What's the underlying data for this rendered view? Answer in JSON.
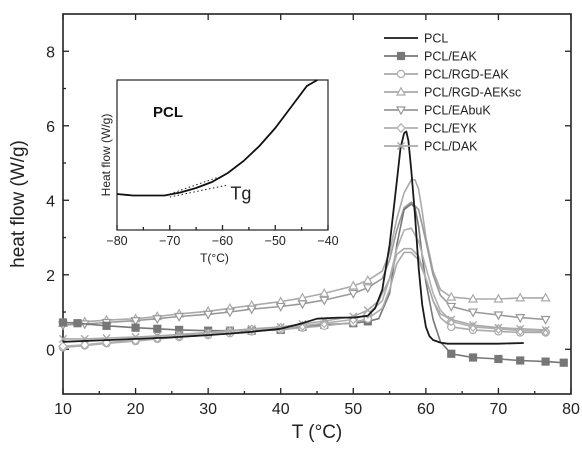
{
  "chart_data": [
    {
      "type": "line",
      "title": "",
      "xlabel": "T (°C)",
      "ylabel": "heat flow (W/g)",
      "xlim": [
        10,
        80
      ],
      "ylim": [
        -1.2,
        9
      ],
      "xticks": [
        10,
        20,
        30,
        40,
        50,
        60,
        70,
        80
      ],
      "yticks": [
        0,
        2,
        4,
        6,
        8
      ],
      "legend_position": "top-right",
      "grid": false,
      "series": [
        {
          "name": "PCL",
          "color": "#1a1a1a",
          "marker": "none",
          "x": [
            10,
            15,
            20,
            25,
            30,
            35,
            40,
            43,
            45,
            48,
            50,
            52,
            53,
            54,
            55,
            56,
            56.5,
            57,
            57.3,
            57.6,
            58,
            58.5,
            59,
            59.5,
            60,
            60.5,
            61,
            62,
            63,
            65,
            70,
            73.5
          ],
          "y": [
            0.2,
            0.24,
            0.28,
            0.32,
            0.38,
            0.45,
            0.55,
            0.7,
            0.82,
            0.85,
            0.85,
            0.9,
            1.1,
            1.6,
            2.8,
            4.5,
            5.4,
            5.8,
            5.85,
            5.6,
            4.8,
            3.6,
            2.2,
            1.2,
            0.6,
            0.35,
            0.25,
            0.18,
            0.15,
            0.15,
            0.15,
            0.17
          ]
        },
        {
          "name": "PCL/EAK",
          "color": "#777777",
          "marker": "square",
          "x": [
            10,
            12,
            16,
            20,
            23,
            26,
            30,
            33,
            36,
            40,
            43,
            46,
            50,
            52,
            53.5,
            55,
            56,
            57,
            58,
            58.5,
            59,
            59.5,
            60,
            61,
            62,
            63.5,
            66.5,
            70,
            73,
            76.5,
            79
          ],
          "y": [
            0.72,
            0.7,
            0.63,
            0.58,
            0.55,
            0.52,
            0.5,
            0.5,
            0.5,
            0.52,
            0.6,
            0.66,
            0.7,
            0.75,
            0.82,
            1.5,
            2.8,
            3.75,
            3.9,
            3.8,
            3.3,
            2.5,
            1.8,
            0.8,
            0.2,
            -0.12,
            -0.22,
            -0.26,
            -0.3,
            -0.33,
            -0.36
          ]
        },
        {
          "name": "PCL/RGD-EAK",
          "color": "#aaaaaa",
          "marker": "circle",
          "x": [
            10,
            13,
            16,
            20,
            23,
            26,
            30,
            33,
            36,
            40,
            43,
            46,
            50,
            52,
            54,
            55,
            56,
            57,
            58,
            59,
            60,
            61,
            62,
            63.5,
            66.5,
            70,
            73,
            76.5
          ],
          "y": [
            0.05,
            0.1,
            0.16,
            0.22,
            0.28,
            0.33,
            0.38,
            0.43,
            0.48,
            0.53,
            0.58,
            0.63,
            0.72,
            0.82,
            1.1,
            1.6,
            2.3,
            2.6,
            2.6,
            2.4,
            1.9,
            1.3,
            0.85,
            0.6,
            0.52,
            0.48,
            0.45,
            0.45
          ]
        },
        {
          "name": "PCL/RGD-AEKsc",
          "color": "#aaaaaa",
          "marker": "triangle-up",
          "x": [
            10,
            13,
            16,
            20,
            23,
            26,
            30,
            33,
            36,
            40,
            43,
            46,
            50,
            52,
            54,
            55,
            56,
            57,
            58,
            58.5,
            59,
            59.5,
            60,
            61,
            62,
            63.5,
            66.5,
            70,
            73,
            76.5
          ],
          "y": [
            0.7,
            0.74,
            0.78,
            0.82,
            0.88,
            0.95,
            1.02,
            1.1,
            1.18,
            1.28,
            1.38,
            1.5,
            1.7,
            1.85,
            2.1,
            2.6,
            3.5,
            4.2,
            4.55,
            4.55,
            4.3,
            3.7,
            3.0,
            2.1,
            1.6,
            1.4,
            1.35,
            1.35,
            1.38,
            1.38
          ]
        },
        {
          "name": "PCL/EAbuK",
          "color": "#999999",
          "marker": "triangle-down",
          "x": [
            10,
            13,
            16,
            20,
            23,
            26,
            30,
            33,
            36,
            40,
            43,
            46,
            50,
            52,
            54,
            55,
            56,
            57,
            58,
            59,
            60,
            61,
            62,
            63.5,
            66.5,
            70,
            73,
            76.5
          ],
          "y": [
            0.65,
            0.68,
            0.72,
            0.77,
            0.82,
            0.88,
            0.94,
            1.0,
            1.08,
            1.15,
            1.22,
            1.32,
            1.5,
            1.65,
            1.9,
            2.4,
            3.2,
            3.8,
            3.95,
            3.75,
            2.9,
            2.0,
            1.45,
            1.15,
            1.0,
            0.92,
            0.85,
            0.8
          ]
        },
        {
          "name": "PCL/EYK",
          "color": "#b0b0b0",
          "marker": "diamond",
          "x": [
            10,
            13,
            16,
            20,
            23,
            26,
            30,
            33,
            36,
            40,
            43,
            46,
            50,
            52,
            54,
            55,
            56,
            57,
            58,
            59,
            60,
            61,
            62,
            63.5,
            66.5,
            70,
            73,
            76.5
          ],
          "y": [
            0.08,
            0.12,
            0.18,
            0.24,
            0.3,
            0.36,
            0.42,
            0.48,
            0.53,
            0.58,
            0.63,
            0.7,
            0.8,
            0.95,
            1.3,
            1.9,
            2.7,
            3.2,
            3.25,
            2.9,
            2.2,
            1.5,
            1.05,
            0.75,
            0.6,
            0.55,
            0.5,
            0.48
          ]
        },
        {
          "name": "PCL/DAK",
          "color": "#aaaaaa",
          "marker": "x",
          "x": [
            10,
            13,
            16,
            20,
            23,
            26,
            30,
            33,
            36,
            40,
            43,
            46,
            50,
            52,
            53.5,
            55,
            56,
            57,
            58,
            59,
            60,
            61,
            62,
            63.5,
            66.5,
            70,
            73,
            76.5
          ],
          "y": [
            0.28,
            0.28,
            0.3,
            0.33,
            0.36,
            0.4,
            0.45,
            0.5,
            0.55,
            0.6,
            0.68,
            0.76,
            0.88,
            1.05,
            1.3,
            1.9,
            2.55,
            2.7,
            2.7,
            2.5,
            1.9,
            1.3,
            0.95,
            0.8,
            0.65,
            0.58,
            0.55,
            0.52
          ]
        }
      ]
    },
    {
      "type": "line",
      "title": "PCL",
      "xlabel": "T(°C)",
      "ylabel": "Heat flow (W/g)",
      "xlim": [
        -80,
        -40
      ],
      "ylim": [
        0,
        1
      ],
      "xticks": [
        -80,
        -70,
        -60,
        -50,
        -40
      ],
      "yticks": [],
      "annotation": "Tg",
      "series": [
        {
          "name": "",
          "color": "#111111",
          "marker": "none",
          "x": [
            -80,
            -77,
            -74,
            -71,
            -68,
            -65,
            -62,
            -59,
            -56,
            -53,
            -50,
            -47,
            -44,
            -42
          ],
          "y": [
            0.24,
            0.23,
            0.23,
            0.23,
            0.25,
            0.28,
            0.32,
            0.38,
            0.46,
            0.56,
            0.68,
            0.82,
            0.96,
            1.0
          ]
        },
        {
          "name": "",
          "color": "#333333",
          "marker": "none",
          "style": "dotted",
          "x": [
            -70,
            -61
          ],
          "y": [
            0.24,
            0.35
          ]
        },
        {
          "name": "",
          "color": "#333333",
          "marker": "none",
          "style": "dotted",
          "x": [
            -70,
            -59
          ],
          "y": [
            0.22,
            0.3
          ]
        }
      ]
    }
  ]
}
